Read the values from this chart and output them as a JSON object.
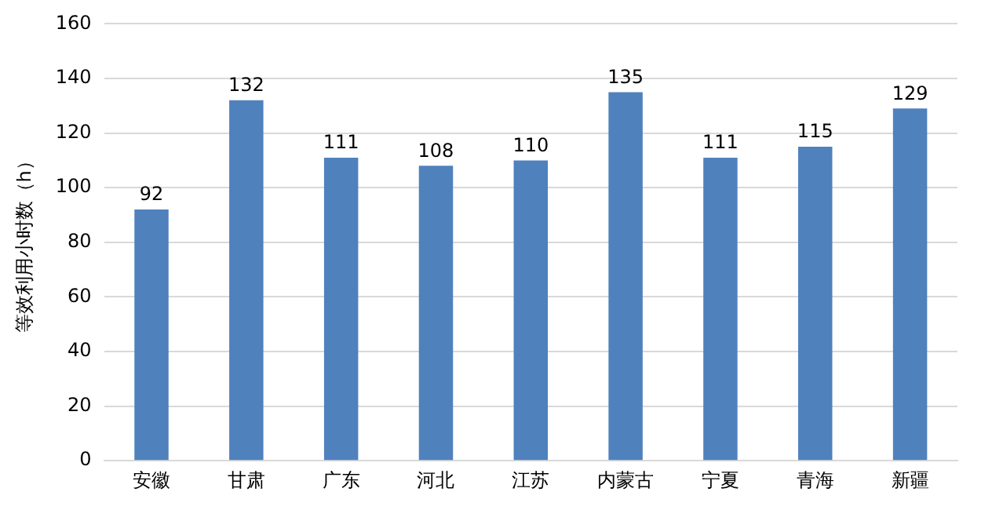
{
  "chart_data": {
    "type": "bar",
    "ylabel": "等效利用小时数（h）",
    "categories": [
      "安徽",
      "甘肃",
      "广东",
      "河北",
      "江苏",
      "内蒙古",
      "宁夏",
      "青海",
      "新疆"
    ],
    "values": [
      92,
      132,
      111,
      108,
      110,
      135,
      111,
      115,
      129
    ],
    "color": "#4f81bd",
    "ylim": [
      0,
      160
    ],
    "yticks": [
      0,
      20,
      40,
      60,
      80,
      100,
      120,
      140,
      160
    ],
    "grid": "y",
    "data_labels": true
  }
}
